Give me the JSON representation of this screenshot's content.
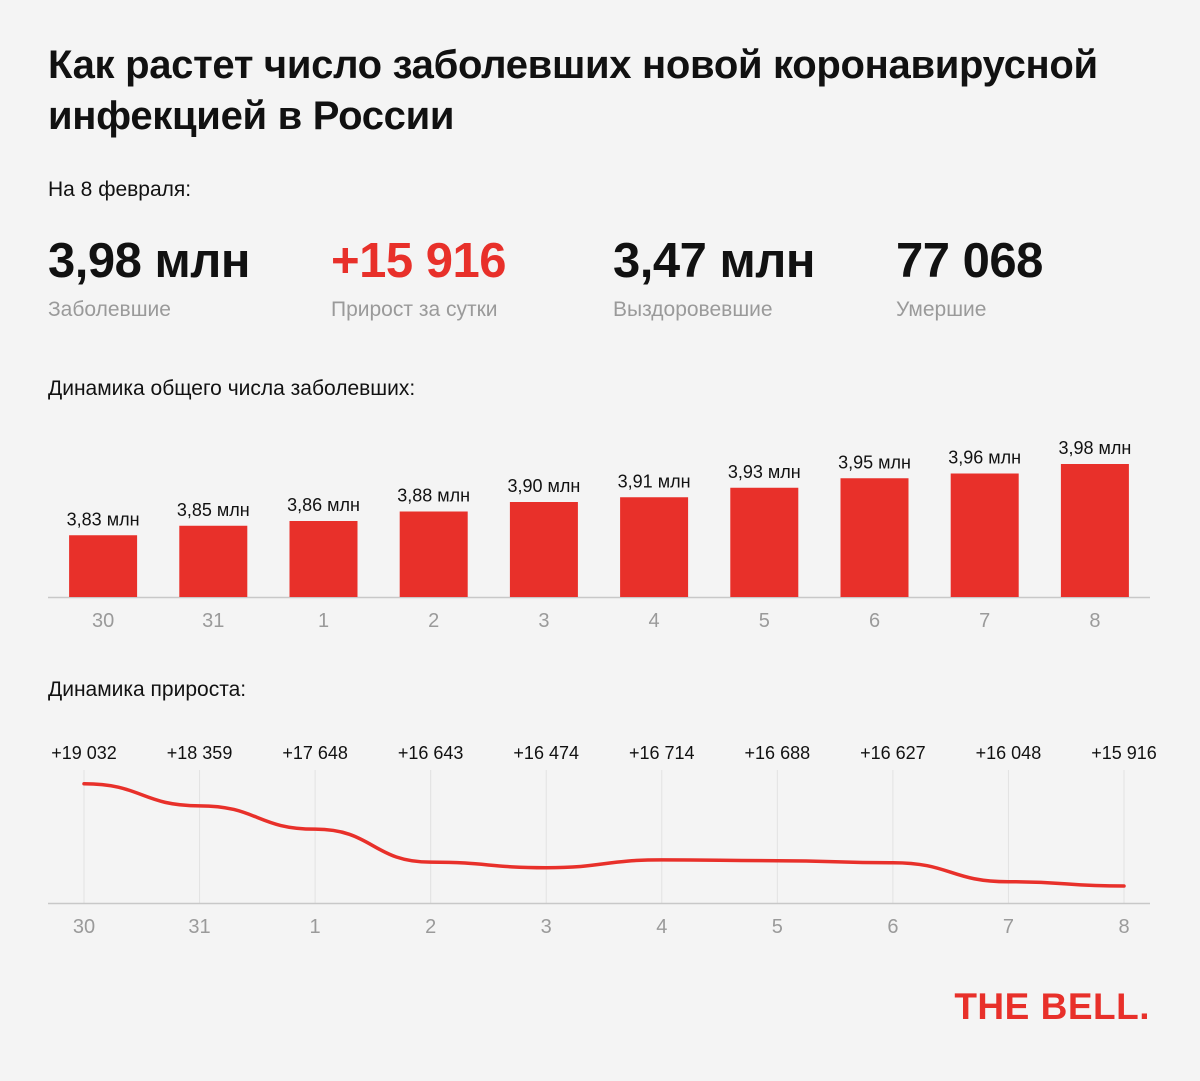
{
  "title": "Как растет число заболевших новой коронавирусной инфекцией в России",
  "date_label": "На 8 февраля:",
  "stats": [
    {
      "value": "3,98 млн",
      "label": "Заболевшие",
      "color": "#111111"
    },
    {
      "value": "+15 916",
      "label": "Прирост за сутки",
      "color": "#e8302a"
    },
    {
      "value": "3,47 млн",
      "label": "Выздоровевшие",
      "color": "#111111"
    },
    {
      "value": "77 068",
      "label": "Умершие",
      "color": "#111111"
    }
  ],
  "logo": "THE BELL.",
  "colors": {
    "accent": "#e8302a",
    "axis": "#c8c8c8",
    "grid": "#e2e2e2",
    "tick": "#9a9a9a"
  },
  "chart_data": [
    {
      "type": "bar",
      "title": "Динамика общего числа заболевших:",
      "categories": [
        "30",
        "31",
        "1",
        "2",
        "3",
        "4",
        "5",
        "6",
        "7",
        "8"
      ],
      "values": [
        3.83,
        3.85,
        3.86,
        3.88,
        3.9,
        3.91,
        3.93,
        3.95,
        3.96,
        3.98
      ],
      "data_labels": [
        "3,83 млн",
        "3,85 млн",
        "3,86 млн",
        "3,88 млн",
        "3,90 млн",
        "3,91 млн",
        "3,93 млн",
        "3,95 млн",
        "3,96 млн",
        "3,98 млн"
      ],
      "grid": false,
      "legend": "none"
    },
    {
      "type": "line",
      "title": "Динамика прироста:",
      "categories": [
        "30",
        "31",
        "1",
        "2",
        "3",
        "4",
        "5",
        "6",
        "7",
        "8"
      ],
      "values": [
        19032,
        18359,
        17648,
        16643,
        16474,
        16714,
        16688,
        16627,
        16048,
        15916
      ],
      "data_labels": [
        "+19 032",
        "+18 359",
        "+17 648",
        "+16 643",
        "+16 474",
        "+16 714",
        "+16 688",
        "+16 627",
        "+16 048",
        "+15 916"
      ],
      "ylim": [
        15400,
        19450
      ],
      "grid": true,
      "legend": "none"
    }
  ]
}
